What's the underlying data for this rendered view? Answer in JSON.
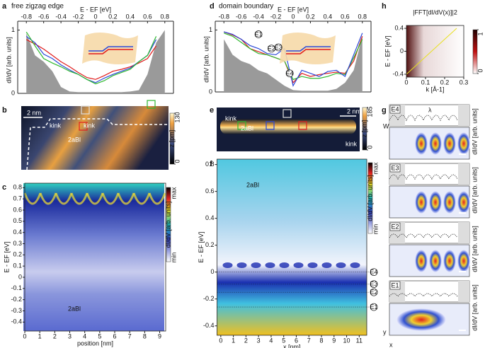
{
  "chart_data": [
    {
      "type": "line",
      "panel": "a",
      "title": "free zigzag edge",
      "xlabel": "E - EF [eV]",
      "ylabel": "dI/dV [arb. units]",
      "x": [
        -0.8,
        -0.7,
        -0.6,
        -0.5,
        -0.4,
        -0.3,
        -0.2,
        -0.1,
        0,
        0.1,
        0.2,
        0.3,
        0.4,
        0.5,
        0.6,
        0.7,
        0.8
      ],
      "xlim": [
        -0.9,
        0.9
      ],
      "xticks": [
        -0.8,
        -0.6,
        -0.4,
        -0.2,
        0,
        0.2,
        0.4,
        0.6,
        0.8
      ],
      "ylim": [
        0,
        1.05
      ],
      "yticks": [
        0,
        1
      ],
      "series": [
        {
          "color": "#9a9a9a",
          "fill": true,
          "values": [
            0.95,
            0.6,
            0.5,
            0.35,
            0.1,
            0.03,
            0.02,
            0.02,
            0.02,
            0.02,
            0.02,
            0.02,
            0.03,
            0.05,
            0.3,
            0.8,
            1.0
          ]
        },
        {
          "color": "#e01b1b",
          "values": [
            0.85,
            0.78,
            0.7,
            0.6,
            0.5,
            0.42,
            0.33,
            0.25,
            0.22,
            0.28,
            0.35,
            0.38,
            0.42,
            0.48,
            0.55,
            0.75,
            null
          ]
        },
        {
          "color": "#2b48d8",
          "values": [
            0.9,
            0.8,
            0.62,
            0.55,
            0.45,
            0.37,
            0.3,
            0.22,
            0.17,
            0.24,
            0.3,
            0.35,
            0.4,
            0.5,
            0.6,
            0.85,
            null
          ]
        },
        {
          "color": "#2fb82f",
          "values": [
            0.97,
            0.75,
            0.55,
            0.48,
            0.42,
            0.35,
            0.3,
            0.22,
            0.15,
            0.2,
            0.28,
            0.33,
            0.38,
            0.5,
            0.6,
            0.9,
            null
          ]
        }
      ]
    },
    {
      "type": "image",
      "panel": "b",
      "annotations": [
        "2 nm",
        "kink",
        "kink",
        "2aBl"
      ],
      "colorbar_label": "z [pm]",
      "colorbar_ticks": [
        0,
        130
      ]
    },
    {
      "type": "image",
      "panel": "c",
      "ylabel": "E - EF [eV]",
      "xlabel": "position [nm]",
      "xlim": [
        0,
        9.4
      ],
      "xticks": [
        0,
        1,
        2,
        3,
        4,
        5,
        6,
        7,
        8,
        9
      ],
      "ylim": [
        -0.48,
        0.84
      ],
      "yticks": [
        -0.4,
        -0.3,
        -0.2,
        -0.1,
        0,
        0.1,
        0.2,
        0.3,
        0.4,
        0.5,
        0.6,
        0.7,
        0.8
      ],
      "colorbar_label": "dI/dV [arb. units]",
      "colorbar_ends": [
        "min",
        "max"
      ],
      "annotations": [
        "2aBl"
      ]
    },
    {
      "type": "line",
      "panel": "d",
      "title": "domain boundary",
      "xlabel": "E - EF [eV]",
      "ylabel": "dI/dV [arb. units]",
      "x": [
        -0.8,
        -0.7,
        -0.6,
        -0.5,
        -0.4,
        -0.3,
        -0.2,
        -0.1,
        0,
        0.1,
        0.2,
        0.3,
        0.4,
        0.5,
        0.6,
        0.7,
        0.8
      ],
      "xlim": [
        -0.9,
        0.9
      ],
      "xticks": [
        -0.8,
        -0.6,
        -0.4,
        -0.2,
        0,
        0.2,
        0.4,
        0.6,
        0.8
      ],
      "ylim": [
        0,
        1.05
      ],
      "yticks": [
        0,
        1
      ],
      "series": [
        {
          "color": "#9a9a9a",
          "fill": true,
          "values": [
            0.85,
            0.6,
            0.5,
            0.45,
            0.35,
            0.3,
            0.2,
            0.1,
            0.03,
            0.02,
            0.02,
            0.02,
            0.02,
            0.05,
            0.15,
            0.35,
            0.9
          ]
        },
        {
          "color": "#e01b1b",
          "values": [
            0.97,
            0.92,
            0.85,
            0.7,
            0.65,
            0.6,
            0.55,
            0.5,
            0.15,
            0.3,
            0.25,
            0.28,
            0.3,
            0.32,
            0.3,
            0.5,
            0.9
          ]
        },
        {
          "color": "#2fb82f",
          "values": [
            0.95,
            0.9,
            0.8,
            0.7,
            0.62,
            0.6,
            0.55,
            0.5,
            0.2,
            0.25,
            0.22,
            0.22,
            0.25,
            0.3,
            0.28,
            0.55,
            0.85
          ]
        },
        {
          "color": "#2b48d8",
          "values": [
            0.97,
            0.93,
            0.85,
            0.75,
            0.7,
            0.62,
            0.6,
            0.7,
            0.1,
            0.35,
            0.3,
            0.25,
            0.33,
            0.35,
            0.25,
            0.6,
            0.95
          ]
        }
      ],
      "markers": [
        {
          "label": "E1",
          "x": -0.4,
          "y": 0.93
        },
        {
          "label": "E2",
          "x": -0.25,
          "y": 0.7
        },
        {
          "label": "E3",
          "x": -0.17,
          "y": 0.72
        },
        {
          "label": "E4",
          "x": -0.04,
          "y": 0.3
        }
      ]
    },
    {
      "type": "image",
      "panel": "e",
      "annotations": [
        "kink",
        "2aBl",
        "2 nm",
        "kink"
      ],
      "colorbar_label": "z [pm]",
      "colorbar_ticks": [
        0,
        185
      ]
    },
    {
      "type": "image",
      "panel": "f",
      "ylabel": "E - EF [eV]",
      "xlabel": "x [nm]",
      "xlim": [
        -0.3,
        11.6
      ],
      "xticks": [
        0,
        1,
        2,
        3,
        4,
        5,
        6,
        7,
        8,
        9,
        10,
        11
      ],
      "ylim": [
        -0.47,
        0.84
      ],
      "yticks": [
        -0.4,
        -0.2,
        0,
        0.2,
        0.4,
        0.6,
        0.8
      ],
      "colorbar_label": "dI/dV [arb. units]",
      "colorbar_ends": [
        "min",
        "max"
      ],
      "annotations": [
        "2aBl"
      ],
      "levels": [
        {
          "label": "E4",
          "y": 0
        },
        {
          "label": "E3",
          "y": -0.09
        },
        {
          "label": "E2",
          "y": -0.15
        },
        {
          "label": "E1",
          "y": -0.26
        }
      ]
    },
    {
      "type": "image",
      "panel": "g",
      "strips": [
        "E4",
        "E3",
        "E2",
        "E1"
      ],
      "ylabel": "dI/dV [arb. units]",
      "annotations": [
        "λ",
        "W",
        "x",
        "y"
      ]
    },
    {
      "type": "image",
      "panel": "h",
      "title": "|FFT[dI/dV(x)]|2",
      "ylabel": "E - EF [eV]",
      "xlabel": "k [Å-1]",
      "xlim": [
        0,
        0.3
      ],
      "xticks": [
        0,
        0.1,
        0.2,
        0.3
      ],
      "ylim": [
        -0.45,
        0.45
      ],
      "yticks": [
        -0.4,
        0,
        0.4
      ],
      "colorbar_ticks": [
        0,
        1
      ]
    }
  ]
}
